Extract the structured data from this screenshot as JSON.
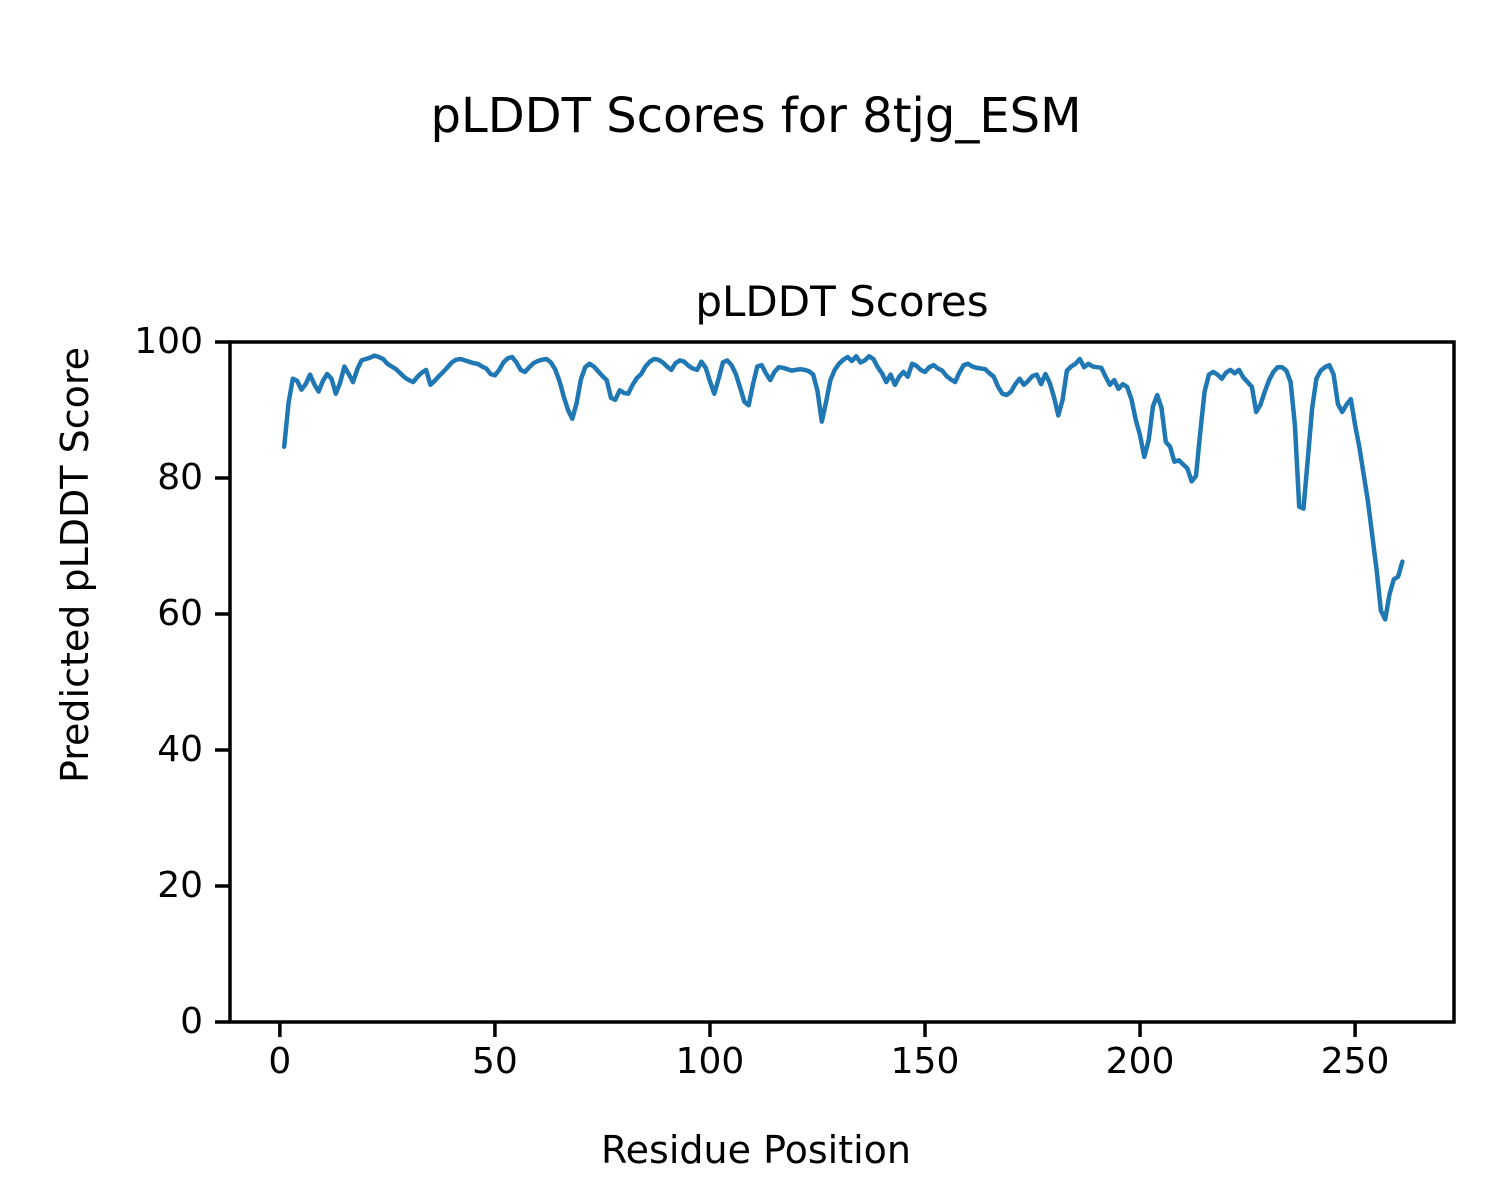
{
  "chart_data": {
    "type": "line",
    "figure_title": "pLDDT Scores for 8tjg_ESM",
    "axes_title": "pLDDT Scores",
    "xlabel": "Residue Position",
    "ylabel": "Predicted pLDDT Score",
    "x_ticks": [
      0,
      50,
      100,
      150,
      200,
      250
    ],
    "y_ticks": [
      0,
      20,
      40,
      60,
      80,
      100
    ],
    "xlim": [
      -11.6,
      273.0
    ],
    "ylim": [
      0,
      100
    ],
    "grid": false,
    "legend": "none",
    "line_color": "#1f77b4",
    "axis_color": "#000000",
    "background_color": "#ffffff",
    "series": [
      {
        "name": "pLDDT",
        "x_start": 1,
        "x_step": 1,
        "y": [
          84.6,
          91.0,
          94.6,
          94.3,
          93.0,
          93.8,
          95.2,
          93.8,
          92.7,
          94.3,
          95.3,
          94.6,
          92.4,
          94.0,
          96.4,
          95.3,
          94.1,
          96.0,
          97.3,
          97.5,
          97.7,
          98.0,
          97.8,
          97.5,
          96.8,
          96.4,
          96.0,
          95.4,
          94.8,
          94.4,
          94.1,
          94.9,
          95.5,
          95.9,
          93.7,
          94.3,
          95.0,
          95.6,
          96.3,
          97.0,
          97.4,
          97.5,
          97.3,
          97.1,
          96.9,
          96.8,
          96.4,
          96.1,
          95.3,
          95.1,
          95.9,
          97.0,
          97.6,
          97.8,
          97.0,
          95.9,
          95.6,
          96.3,
          96.9,
          97.2,
          97.4,
          97.5,
          97.0,
          96.0,
          94.3,
          92.0,
          90.0,
          88.7,
          91.0,
          94.5,
          96.3,
          96.8,
          96.4,
          95.7,
          95.0,
          94.4,
          91.8,
          91.5,
          92.9,
          92.5,
          92.4,
          93.7,
          94.7,
          95.3,
          96.4,
          97.1,
          97.5,
          97.4,
          97.0,
          96.4,
          95.9,
          96.9,
          97.3,
          97.1,
          96.5,
          96.1,
          95.9,
          97.1,
          96.2,
          94.2,
          92.4,
          94.6,
          97.0,
          97.3,
          96.6,
          95.3,
          93.3,
          91.2,
          90.7,
          93.8,
          96.4,
          96.6,
          95.4,
          94.4,
          95.6,
          96.3,
          96.2,
          96.0,
          95.8,
          95.9,
          96.0,
          95.9,
          95.7,
          95.2,
          92.8,
          88.3,
          91.2,
          94.4,
          95.9,
          96.8,
          97.4,
          97.8,
          97.2,
          97.9,
          97.0,
          97.3,
          97.9,
          97.5,
          96.3,
          95.4,
          94.1,
          95.2,
          93.7,
          94.9,
          95.6,
          94.9,
          96.8,
          96.5,
          95.9,
          95.6,
          96.3,
          96.6,
          96.1,
          95.8,
          95.0,
          94.5,
          94.1,
          95.5,
          96.6,
          96.8,
          96.4,
          96.2,
          96.1,
          96.0,
          95.4,
          94.9,
          93.4,
          92.4,
          92.2,
          92.7,
          93.8,
          94.6,
          93.7,
          94.3,
          95.0,
          95.2,
          93.8,
          95.3,
          94.0,
          91.9,
          89.2,
          91.5,
          95.8,
          96.4,
          96.8,
          97.5,
          96.3,
          96.8,
          96.4,
          96.3,
          96.2,
          94.9,
          93.7,
          94.4,
          93.1,
          93.8,
          93.4,
          91.6,
          88.6,
          86.3,
          83.1,
          85.5,
          90.5,
          92.2,
          90.3,
          85.3,
          84.6,
          82.4,
          82.6,
          82.0,
          81.4,
          79.5,
          80.3,
          86.8,
          92.7,
          95.2,
          95.6,
          95.2,
          94.6,
          95.5,
          95.9,
          95.4,
          95.9,
          94.8,
          94.1,
          93.4,
          89.7,
          90.8,
          92.7,
          94.4,
          95.6,
          96.3,
          96.3,
          95.8,
          94.1,
          87.8,
          75.8,
          75.5,
          82.8,
          90.2,
          94.6,
          95.8,
          96.3,
          96.6,
          95.2,
          90.9,
          89.7,
          90.8,
          91.6,
          87.8,
          84.5,
          80.5,
          76.5,
          71.5,
          66.5,
          60.5,
          59.2,
          62.9,
          65.1,
          65.5,
          67.7
        ]
      }
    ]
  }
}
